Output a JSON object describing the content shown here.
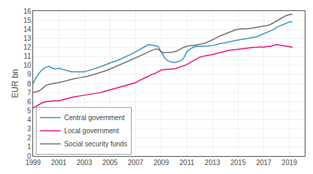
{
  "chart_data": {
    "type": "line",
    "ylabel": "EUR bn",
    "x": [
      1999,
      1999.25,
      1999.5,
      1999.75,
      2000,
      2000.25,
      2000.5,
      2000.75,
      2001,
      2001.25,
      2001.5,
      2001.75,
      2002,
      2002.25,
      2002.5,
      2002.75,
      2003,
      2003.25,
      2003.5,
      2003.75,
      2004,
      2004.25,
      2004.5,
      2004.75,
      2005,
      2005.25,
      2005.5,
      2005.75,
      2006,
      2006.25,
      2006.5,
      2006.75,
      2007,
      2007.25,
      2007.5,
      2007.75,
      2008,
      2008.25,
      2008.5,
      2008.75,
      2009,
      2009.25,
      2009.5,
      2009.75,
      2010,
      2010.25,
      2010.5,
      2010.75,
      2011,
      2011.25,
      2011.5,
      2011.75,
      2012,
      2012.25,
      2012.5,
      2012.75,
      2013,
      2013.25,
      2013.5,
      2013.75,
      2014,
      2014.25,
      2014.5,
      2014.75,
      2015,
      2015.25,
      2015.5,
      2015.75,
      2016,
      2016.25,
      2016.5,
      2016.75,
      2017,
      2017.25,
      2017.5,
      2017.75,
      2018,
      2018.25,
      2018.5,
      2018.75,
      2019,
      2019.25
    ],
    "series": [
      {
        "name": "Central government",
        "color": "#2b8cbe",
        "values": [
          8.0,
          8.7,
          9.2,
          9.6,
          9.8,
          9.9,
          9.7,
          9.6,
          9.7,
          9.6,
          9.5,
          9.4,
          9.3,
          9.3,
          9.3,
          9.3,
          9.3,
          9.4,
          9.5,
          9.6,
          9.7,
          9.85,
          10.0,
          10.15,
          10.3,
          10.4,
          10.5,
          10.65,
          10.8,
          10.95,
          11.1,
          11.3,
          11.5,
          11.7,
          11.9,
          12.1,
          12.3,
          12.25,
          12.2,
          12.1,
          11.5,
          10.9,
          10.5,
          10.4,
          10.3,
          10.4,
          10.5,
          10.8,
          11.5,
          11.8,
          12.0,
          12.1,
          12.1,
          12.1,
          12.1,
          12.15,
          12.2,
          12.3,
          12.4,
          12.45,
          12.5,
          12.6,
          12.7,
          12.75,
          12.8,
          12.85,
          12.9,
          12.95,
          13.0,
          13.1,
          13.2,
          13.35,
          13.5,
          13.65,
          13.8,
          13.95,
          14.2,
          14.35,
          14.5,
          14.65,
          14.8,
          14.8
        ]
      },
      {
        "name": "Local government",
        "color": "#e8006f",
        "values": [
          5.3,
          5.5,
          5.7,
          5.9,
          6.0,
          6.05,
          6.1,
          6.1,
          6.1,
          6.2,
          6.3,
          6.4,
          6.5,
          6.55,
          6.6,
          6.65,
          6.7,
          6.75,
          6.8,
          6.85,
          6.9,
          7.0,
          7.1,
          7.2,
          7.3,
          7.4,
          7.5,
          7.6,
          7.7,
          7.8,
          7.9,
          8.0,
          8.1,
          8.3,
          8.5,
          8.65,
          8.8,
          9.0,
          9.1,
          9.3,
          9.5,
          9.55,
          9.6,
          9.6,
          9.6,
          9.7,
          9.8,
          9.95,
          10.1,
          10.3,
          10.5,
          10.7,
          10.9,
          11.0,
          11.1,
          11.15,
          11.2,
          11.3,
          11.4,
          11.5,
          11.6,
          11.65,
          11.7,
          11.75,
          11.8,
          11.85,
          11.9,
          11.95,
          12.0,
          12.0,
          12.0,
          12.05,
          12.0,
          12.1,
          12.1,
          12.2,
          12.3,
          12.25,
          12.2,
          12.1,
          12.1,
          12.0
        ]
      },
      {
        "name": "Social security funds",
        "color": "#666666",
        "values": [
          7.0,
          7.1,
          7.2,
          7.5,
          7.8,
          7.9,
          8.0,
          8.05,
          8.1,
          8.2,
          8.3,
          8.4,
          8.5,
          8.55,
          8.6,
          8.65,
          8.7,
          8.8,
          8.9,
          9.0,
          9.1,
          9.2,
          9.3,
          9.45,
          9.6,
          9.75,
          9.9,
          10.05,
          10.2,
          10.35,
          10.5,
          10.65,
          10.8,
          10.95,
          11.1,
          11.3,
          11.5,
          11.65,
          11.8,
          11.8,
          11.5,
          11.4,
          11.4,
          11.45,
          11.5,
          11.6,
          11.8,
          12.0,
          12.1,
          12.2,
          12.2,
          12.25,
          12.3,
          12.4,
          12.5,
          12.65,
          12.8,
          13.0,
          13.2,
          13.35,
          13.5,
          13.65,
          13.8,
          13.9,
          14.0,
          14.0,
          14.0,
          14.05,
          14.1,
          14.15,
          14.2,
          14.25,
          14.3,
          14.4,
          14.5,
          14.7,
          14.9,
          15.1,
          15.3,
          15.5,
          15.6,
          15.65
        ]
      }
    ],
    "xlim": [
      1999,
      2020.2
    ],
    "xticks": [
      1999,
      2001,
      2003,
      2005,
      2007,
      2009,
      2011,
      2013,
      2015,
      2017,
      2019
    ],
    "ylim": [
      0,
      16
    ],
    "yticks": [
      0,
      1,
      2,
      3,
      4,
      5,
      6,
      7,
      8,
      9,
      10,
      11,
      12,
      13,
      14,
      15,
      16
    ],
    "grid": true,
    "legend": "lower left"
  }
}
